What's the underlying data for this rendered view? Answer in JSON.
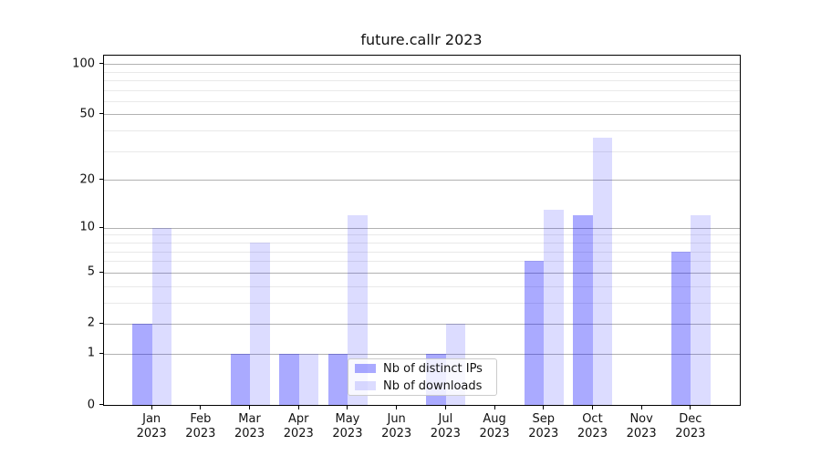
{
  "title": "future.callr 2023",
  "chart_data": {
    "type": "bar",
    "title": "future.callr 2023",
    "categories": [
      "Jan 2023",
      "Feb 2023",
      "Mar 2023",
      "Apr 2023",
      "May 2023",
      "Jun 2023",
      "Jul 2023",
      "Aug 2023",
      "Sep 2023",
      "Oct 2023",
      "Nov 2023",
      "Dec 2023"
    ],
    "x_tick_line1": [
      "Jan",
      "Feb",
      "Mar",
      "Apr",
      "May",
      "Jun",
      "Jul",
      "Aug",
      "Sep",
      "Oct",
      "Nov",
      "Dec"
    ],
    "x_tick_line2": [
      "2023",
      "2023",
      "2023",
      "2023",
      "2023",
      "2023",
      "2023",
      "2023",
      "2023",
      "2023",
      "2023",
      "2023"
    ],
    "series": [
      {
        "name": "Nb of distinct IPs",
        "color": "rgba(0,0,255,0.333)",
        "values": [
          2,
          0,
          1,
          1,
          1,
          0,
          1,
          0,
          6,
          12,
          0,
          7
        ]
      },
      {
        "name": "Nb of downloads",
        "color": "rgba(0,0,255,0.137)",
        "values": [
          10,
          0,
          8,
          1,
          12,
          0,
          2,
          0,
          13,
          36,
          0,
          12
        ]
      }
    ],
    "xlabel": "",
    "ylabel": "",
    "yscale": "log1p",
    "ylim": [
      0,
      112
    ],
    "y_major_tick_labels": [
      "0",
      "1",
      "2",
      "5",
      "10",
      "20",
      "50",
      "100"
    ],
    "y_major_tick_values": [
      0,
      1,
      2,
      5,
      10,
      20,
      50,
      100
    ],
    "y_gridline_major_values": [
      1,
      2,
      5,
      10,
      20,
      50,
      100
    ],
    "y_gridline_minor_values": [
      3,
      4,
      6,
      7,
      8,
      9,
      30,
      40,
      60,
      70,
      80,
      90
    ],
    "grid": "on",
    "legend_position": "lower center",
    "legend_items": [
      "Nb of distinct IPs",
      "Nb of downloads"
    ]
  },
  "colors": {
    "major_grid": "#b2b2b2",
    "minor_grid": "#e9e9e9",
    "spine": "#000000",
    "text": "#111111",
    "background": "#ffffff"
  }
}
